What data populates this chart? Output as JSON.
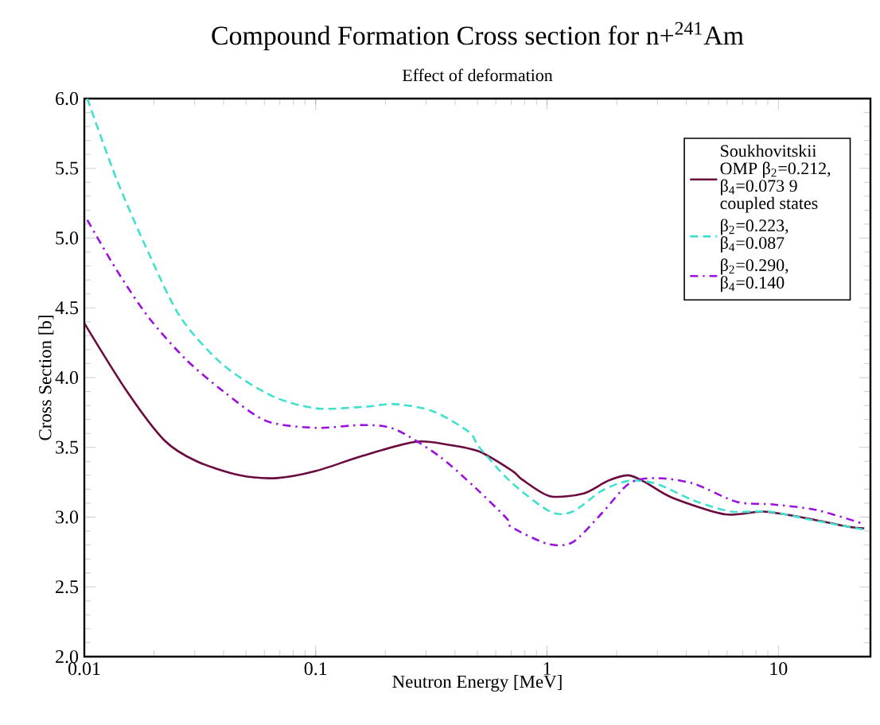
{
  "chart_data": {
    "type": "line",
    "title": "Compound Formation Cross section for n+$^{241}$Am",
    "subtitle": "Effect of deformation",
    "xlabel": "Neutron Energy [MeV]",
    "ylabel": "Cross Section [b]",
    "log": "x",
    "xlim": [
      0.01,
      25
    ],
    "ylim": [
      2.0,
      6.0
    ],
    "xticks": [
      0.01,
      0.1,
      1,
      10
    ],
    "yticks": [
      {
        "value": 2.0,
        "label": "2.0"
      },
      {
        "value": 2.5,
        "label": "2.5"
      },
      {
        "value": 3.0,
        "label": "3.0"
      },
      {
        "value": 3.5,
        "label": "3.5"
      },
      {
        "value": 4.0,
        "label": "4.0"
      },
      {
        "value": 4.5,
        "label": "4.5"
      },
      {
        "value": 5.0,
        "label": "5.0"
      },
      {
        "value": 5.5,
        "label": "5.5"
      },
      {
        "value": 6.0,
        "label": "6.0"
      }
    ],
    "grid": false,
    "legend": "top right",
    "marker": "none",
    "series": [
      {
        "name": "Soukhovitskii OMP β$_{2}$=0.212, β$_{4}$=0.073 9 coupled states",
        "color": "#6b0a3e",
        "line_style": "solid",
        "x": [
          0.01,
          0.0153,
          0.0222,
          0.0306,
          0.0469,
          0.0681,
          0.1,
          0.16,
          0.27,
          0.37,
          0.51,
          0.71,
          0.78,
          1.03,
          1.44,
          1.83,
          2.24,
          2.66,
          3.47,
          5.9,
          8.6,
          12.5,
          20.2,
          23.5
        ],
        "values": [
          4.39,
          3.9,
          3.55,
          3.4,
          3.3,
          3.28,
          3.33,
          3.44,
          3.54,
          3.52,
          3.47,
          3.33,
          3.27,
          3.15,
          3.17,
          3.26,
          3.3,
          3.25,
          3.14,
          3.02,
          3.04,
          3.0,
          2.93,
          2.92
        ]
      },
      {
        "name": "β$_{2}$=0.223, β$_{4}$=0.087",
        "color": "#40e0d0",
        "line_style": "dashed",
        "x": [
          0.0103,
          0.0138,
          0.019,
          0.0261,
          0.0399,
          0.0645,
          0.1,
          0.16,
          0.22,
          0.32,
          0.46,
          0.51,
          0.7,
          1.03,
          1.29,
          1.73,
          2.26,
          2.96,
          4.3,
          6.25,
          9.1,
          13.9,
          23.5
        ],
        "values": [
          6.0,
          5.42,
          4.89,
          4.43,
          4.09,
          3.87,
          3.78,
          3.79,
          3.81,
          3.76,
          3.61,
          3.5,
          3.25,
          3.04,
          3.04,
          3.19,
          3.26,
          3.24,
          3.12,
          3.04,
          3.04,
          2.98,
          2.91
        ]
      },
      {
        "name": "β$_{2}$=0.290, β$_{4}$=0.140",
        "color": "#9b10e0",
        "line_style": "dashdot",
        "x": [
          0.0103,
          0.0138,
          0.019,
          0.0275,
          0.04,
          0.061,
          0.1,
          0.16,
          0.22,
          0.34,
          0.49,
          0.67,
          0.7,
          1.0,
          1.29,
          1.73,
          2.26,
          2.96,
          4.3,
          6.6,
          9.6,
          14.7,
          23.5
        ],
        "values": [
          5.13,
          4.77,
          4.43,
          4.13,
          3.9,
          3.69,
          3.64,
          3.66,
          3.63,
          3.44,
          3.21,
          2.99,
          2.93,
          2.81,
          2.82,
          3.03,
          3.24,
          3.28,
          3.24,
          3.11,
          3.09,
          3.05,
          2.95
        ]
      }
    ]
  }
}
